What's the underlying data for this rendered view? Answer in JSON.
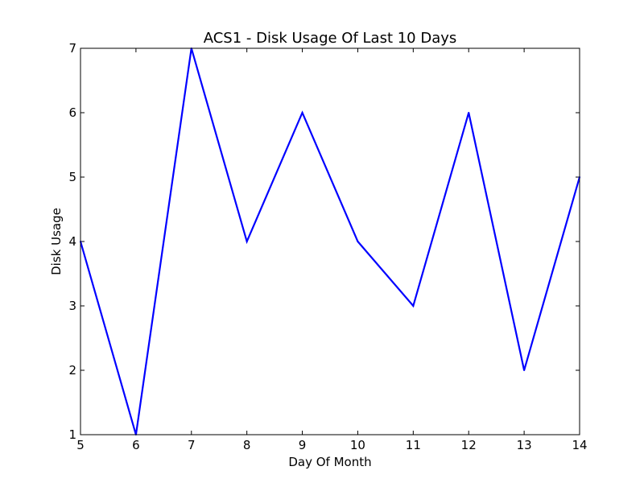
{
  "chart_data": {
    "type": "line",
    "title": "ACS1 - Disk Usage Of Last 10 Days",
    "xlabel": "Day Of Month",
    "ylabel": "Disk Usage",
    "xlim": [
      5,
      14
    ],
    "ylim": [
      1,
      7
    ],
    "x_ticks": [
      5,
      6,
      7,
      8,
      9,
      10,
      11,
      12,
      13,
      14
    ],
    "y_ticks": [
      1,
      2,
      3,
      4,
      5,
      6,
      7
    ],
    "grid": false,
    "legend": "none",
    "series": [
      {
        "color": "#0000ff",
        "x": [
          5,
          6,
          7,
          8,
          9,
          10,
          11,
          12,
          13,
          14
        ],
        "y": [
          4,
          1,
          7,
          4,
          6,
          4,
          3,
          6,
          2,
          5
        ]
      }
    ]
  }
}
